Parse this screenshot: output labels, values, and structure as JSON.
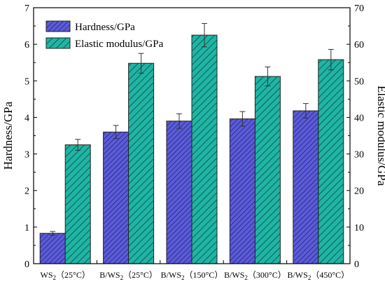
{
  "chart_data": {
    "type": "bar",
    "categories": [
      {
        "base": "WS",
        "sub": "2",
        "cond": "（25°C）"
      },
      {
        "base": "B/WS",
        "sub": "2",
        "cond": "（25°C）"
      },
      {
        "base": "B/WS",
        "sub": "2",
        "cond": "（150°C）"
      },
      {
        "base": "B/WS",
        "sub": "2",
        "cond": "（300°C）"
      },
      {
        "base": "B/WS",
        "sub": "2",
        "cond": "（450°C）"
      }
    ],
    "series": [
      {
        "name": "Hardness/GPa",
        "axis": "left",
        "values": [
          0.83,
          3.6,
          3.9,
          3.96,
          4.18
        ],
        "errors": [
          0.05,
          0.18,
          0.2,
          0.2,
          0.2
        ],
        "color": "#5b5bdb",
        "hatch": "dense-diagonal"
      },
      {
        "name": "Elastic modulus/GPa",
        "axis": "right",
        "values": [
          32.5,
          54.8,
          62.5,
          51.2,
          55.8
        ],
        "errors": [
          1.5,
          2.7,
          3.2,
          2.6,
          2.8
        ],
        "color": "#1fb5a5",
        "hatch": "diagonal"
      }
    ],
    "left_axis": {
      "label": "Hardness/GPa",
      "min": 0,
      "max": 7,
      "ticks": [
        0,
        1,
        2,
        3,
        4,
        5,
        6,
        7
      ]
    },
    "right_axis": {
      "label": "Elastic modulus/GPa",
      "min": 0,
      "max": 70,
      "ticks": [
        0,
        10,
        20,
        30,
        40,
        50,
        60,
        70
      ]
    },
    "legend_position": "top-left",
    "grid": false
  }
}
